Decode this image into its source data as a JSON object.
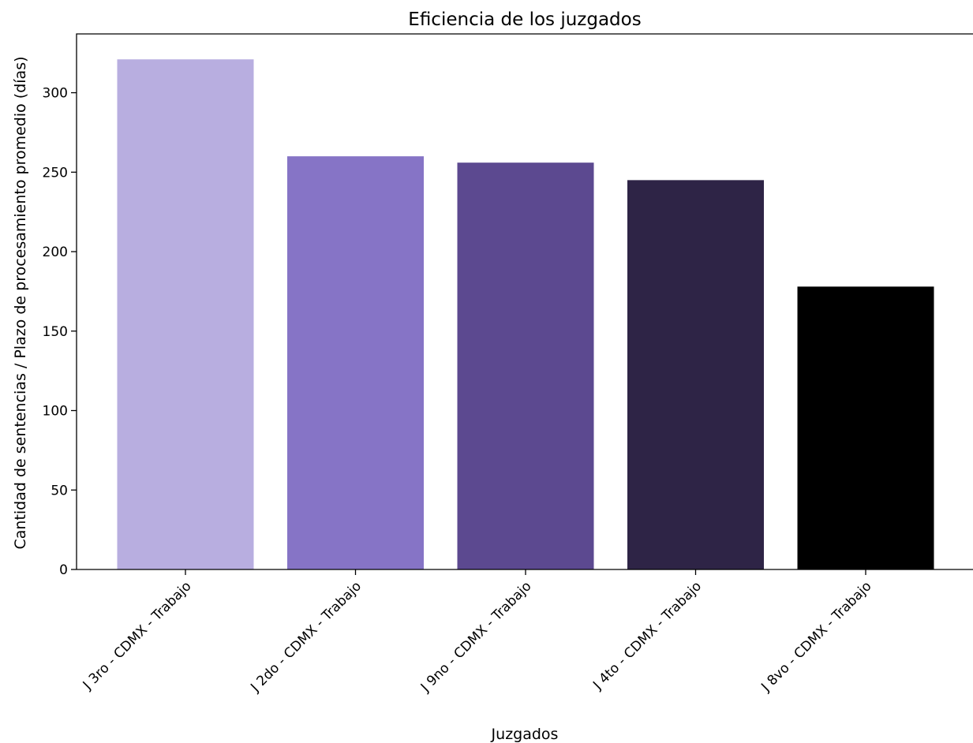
{
  "chart_data": {
    "type": "bar",
    "title": "Eficiencia de los juzgados",
    "xlabel": "Juzgados",
    "ylabel": "Cantidad de sentencias / Plazo de procesamiento promedio (días)",
    "categories": [
      "J 3ro - CDMX - Trabajo",
      "J 2do - CDMX - Trabajo",
      "J 9no - CDMX - Trabajo",
      "J 4to - CDMX - Trabajo",
      "J 8vo - CDMX - Trabajo"
    ],
    "values": [
      321,
      260,
      256,
      245,
      178
    ],
    "colors": [
      "#b8aee0",
      "#8674c6",
      "#5c4990",
      "#2e2446",
      "#000000"
    ],
    "yticks": [
      0,
      50,
      100,
      150,
      200,
      250,
      300
    ],
    "ylim": [
      0,
      337
    ],
    "grid": false,
    "legend": "none"
  }
}
